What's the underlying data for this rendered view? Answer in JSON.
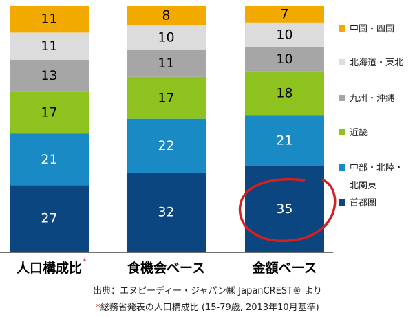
{
  "chart_data": {
    "type": "bar",
    "stacked": true,
    "orientation": "vertical",
    "categories": [
      "人口構成比",
      "食機会ベース",
      "金額ベース"
    ],
    "category_marks": [
      "*",
      "",
      ""
    ],
    "series": [
      {
        "name": "首都圏",
        "values": [
          27,
          32,
          35
        ],
        "color": "#0b4680",
        "label_color": "#ffffff"
      },
      {
        "name": "中部・北陸・北関東",
        "name_lines": [
          "中部・北陸・",
          "北関東"
        ],
        "values": [
          21,
          22,
          21
        ],
        "color": "#1a8ac4",
        "label_color": "#ffffff"
      },
      {
        "name": "近畿",
        "values": [
          17,
          17,
          18
        ],
        "color": "#8ec31f",
        "label_color": "#000000"
      },
      {
        "name": "九州・沖縄",
        "values": [
          13,
          11,
          10
        ],
        "color": "#a6a6a6",
        "label_color": "#000000"
      },
      {
        "name": "北海道・東北",
        "values": [
          11,
          10,
          10
        ],
        "color": "#dcdcdc",
        "label_color": "#000000"
      },
      {
        "name": "中国・四国",
        "values": [
          11,
          8,
          7
        ],
        "color": "#f2a900",
        "label_color": "#000000"
      }
    ],
    "legend_order": [
      "中国・四国",
      "北海道・東北",
      "九州・沖縄",
      "近畿",
      "中部・北陸・北関東",
      "首都圏"
    ],
    "legend_position": "right",
    "highlight": {
      "category": "金額ベース",
      "series": "首都圏",
      "color": "#d42020"
    },
    "grid": false
  },
  "source": {
    "line1": "出典：エヌピーディー・ジャパン㈱ JapanCREST® より",
    "line2_mark": "*",
    "line2": "総務省発表の人口構成比 (15-79歳, 2013年10月基準)"
  },
  "colors": {
    "axis": "#444444",
    "highlight_circle": "#d42020",
    "footnote_mark": "#e03030"
  }
}
